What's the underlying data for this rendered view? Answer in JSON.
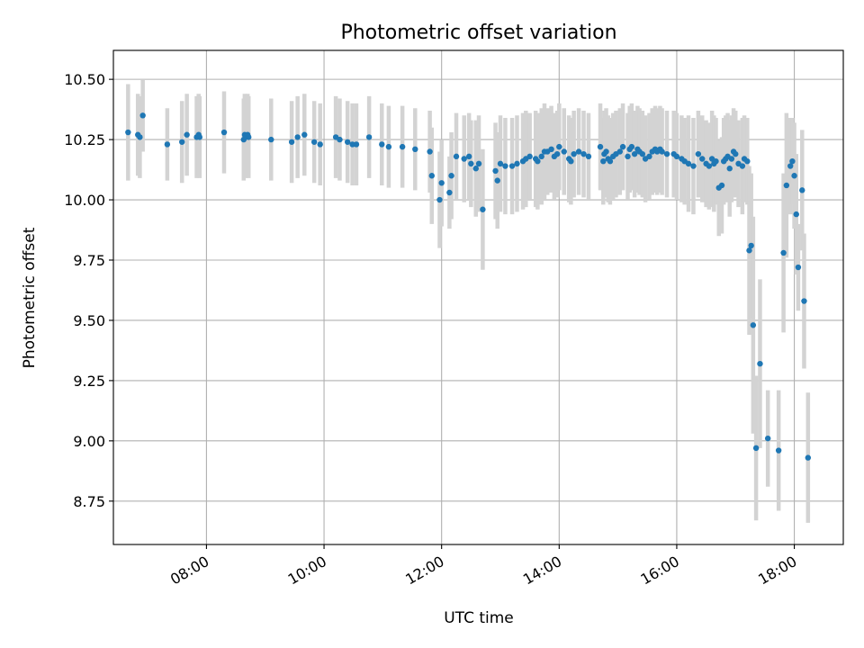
{
  "chart_data": {
    "type": "scatter",
    "title": "Photometric offset variation",
    "xlabel": "UTC time",
    "ylabel": "Photometric offset",
    "xlim": [
      "06:25",
      "18:50"
    ],
    "ylim": [
      8.57,
      10.62
    ],
    "yticks": [
      "8.75",
      "9.00",
      "9.25",
      "9.50",
      "9.75",
      "10.00",
      "10.25",
      "10.50"
    ],
    "xticks": [
      "08:00",
      "10:00",
      "12:00",
      "14:00",
      "16:00",
      "18:00"
    ],
    "grid": true,
    "colors": {
      "points": "#1f77b4",
      "error_bars": "#d3d3d3",
      "grid": "#b0b0b0"
    },
    "series": [
      {
        "x": [
          "06:40",
          "06:50",
          "06:52",
          "06:55",
          "07:20",
          "07:35",
          "07:40",
          "07:50",
          "07:52",
          "07:53",
          "08:18",
          "08:38",
          "08:39",
          "08:40",
          "08:42",
          "08:43",
          "09:06",
          "09:27",
          "09:33",
          "09:40",
          "09:50",
          "09:56",
          "10:12",
          "10:16",
          "10:24",
          "10:29",
          "10:33",
          "10:46",
          "10:59",
          "11:06",
          "11:20",
          "11:33",
          "11:48",
          "11:50",
          "11:58",
          "12:00",
          "12:08",
          "12:10",
          "12:15",
          "12:23",
          "12:28",
          "12:30",
          "12:35",
          "12:38",
          "12:42",
          "12:55",
          "12:57",
          "13:00",
          "13:05",
          "13:12",
          "13:17",
          "13:23",
          "13:26",
          "13:30",
          "13:36",
          "13:38",
          "13:42",
          "13:45",
          "13:48",
          "13:52",
          "13:55",
          "13:58",
          "14:00",
          "14:05",
          "14:10",
          "14:12",
          "14:15",
          "14:20",
          "14:25",
          "14:30",
          "14:42",
          "14:45",
          "14:46",
          "14:48",
          "14:50",
          "14:52",
          "14:55",
          "14:58",
          "15:02",
          "15:05",
          "15:10",
          "15:12",
          "15:14",
          "15:17",
          "15:20",
          "15:22",
          "15:25",
          "15:28",
          "15:32",
          "15:35",
          "15:38",
          "15:40",
          "15:43",
          "15:45",
          "15:50",
          "15:57",
          "16:00",
          "16:05",
          "16:08",
          "16:12",
          "16:17",
          "16:22",
          "16:26",
          "16:30",
          "16:33",
          "16:36",
          "16:38",
          "16:40",
          "16:43",
          "16:46",
          "16:48",
          "16:50",
          "16:52",
          "16:54",
          "16:56",
          "16:58",
          "17:00",
          "17:03",
          "17:07",
          "17:09",
          "17:12",
          "17:14",
          "17:16",
          "17:18",
          "17:21",
          "17:25",
          "17:33",
          "17:44",
          "17:49",
          "17:52",
          "17:56",
          "17:58",
          "18:00",
          "18:02",
          "18:04",
          "18:08",
          "18:10",
          "18:14"
        ],
        "y": [
          10.28,
          10.27,
          10.26,
          10.35,
          10.23,
          10.24,
          10.27,
          10.26,
          10.27,
          10.26,
          10.28,
          10.25,
          10.27,
          10.26,
          10.27,
          10.26,
          10.25,
          10.24,
          10.26,
          10.27,
          10.24,
          10.23,
          10.26,
          10.25,
          10.24,
          10.23,
          10.23,
          10.26,
          10.23,
          10.22,
          10.22,
          10.21,
          10.2,
          10.1,
          10.0,
          10.07,
          10.03,
          10.1,
          10.18,
          10.17,
          10.18,
          10.15,
          10.13,
          10.15,
          9.96,
          10.12,
          10.08,
          10.15,
          10.14,
          10.14,
          10.15,
          10.16,
          10.17,
          10.18,
          10.17,
          10.16,
          10.18,
          10.2,
          10.2,
          10.21,
          10.18,
          10.19,
          10.22,
          10.2,
          10.17,
          10.16,
          10.19,
          10.2,
          10.19,
          10.18,
          10.22,
          10.16,
          10.19,
          10.2,
          10.17,
          10.16,
          10.18,
          10.19,
          10.2,
          10.22,
          10.18,
          10.21,
          10.22,
          10.19,
          10.21,
          10.2,
          10.19,
          10.17,
          10.18,
          10.2,
          10.21,
          10.2,
          10.21,
          10.2,
          10.19,
          10.19,
          10.18,
          10.17,
          10.16,
          10.15,
          10.14,
          10.19,
          10.17,
          10.15,
          10.14,
          10.17,
          10.15,
          10.16,
          10.05,
          10.06,
          10.16,
          10.17,
          10.18,
          10.13,
          10.17,
          10.2,
          10.19,
          10.15,
          10.14,
          10.17,
          10.16,
          9.79,
          9.81,
          9.48,
          8.97,
          9.32,
          9.01,
          8.96,
          9.78,
          10.06,
          10.14,
          10.16,
          10.1,
          9.94,
          9.72,
          10.04,
          9.58,
          8.93
        ],
        "err": [
          0.2,
          0.17,
          0.17,
          0.15,
          0.15,
          0.17,
          0.17,
          0.17,
          0.17,
          0.17,
          0.17,
          0.17,
          0.17,
          0.17,
          0.17,
          0.17,
          0.17,
          0.17,
          0.17,
          0.17,
          0.17,
          0.17,
          0.17,
          0.17,
          0.17,
          0.17,
          0.17,
          0.17,
          0.17,
          0.17,
          0.17,
          0.17,
          0.17,
          0.2,
          0.2,
          0.18,
          0.15,
          0.18,
          0.18,
          0.18,
          0.18,
          0.18,
          0.2,
          0.2,
          0.25,
          0.2,
          0.2,
          0.2,
          0.2,
          0.2,
          0.2,
          0.2,
          0.2,
          0.18,
          0.2,
          0.2,
          0.2,
          0.2,
          0.18,
          0.18,
          0.18,
          0.18,
          0.18,
          0.18,
          0.18,
          0.18,
          0.18,
          0.18,
          0.18,
          0.18,
          0.18,
          0.18,
          0.18,
          0.18,
          0.18,
          0.18,
          0.18,
          0.18,
          0.18,
          0.18,
          0.18,
          0.18,
          0.18,
          0.18,
          0.18,
          0.18,
          0.18,
          0.18,
          0.18,
          0.18,
          0.18,
          0.18,
          0.18,
          0.18,
          0.18,
          0.18,
          0.18,
          0.18,
          0.18,
          0.2,
          0.2,
          0.18,
          0.18,
          0.18,
          0.18,
          0.2,
          0.2,
          0.18,
          0.2,
          0.2,
          0.18,
          0.18,
          0.18,
          0.2,
          0.18,
          0.18,
          0.18,
          0.18,
          0.2,
          0.18,
          0.18,
          0.35,
          0.3,
          0.45,
          0.3,
          0.35,
          0.2,
          0.25,
          0.33,
          0.3,
          0.2,
          0.18,
          0.22,
          0.25,
          0.18,
          0.25,
          0.28,
          0.27
        ]
      }
    ]
  }
}
